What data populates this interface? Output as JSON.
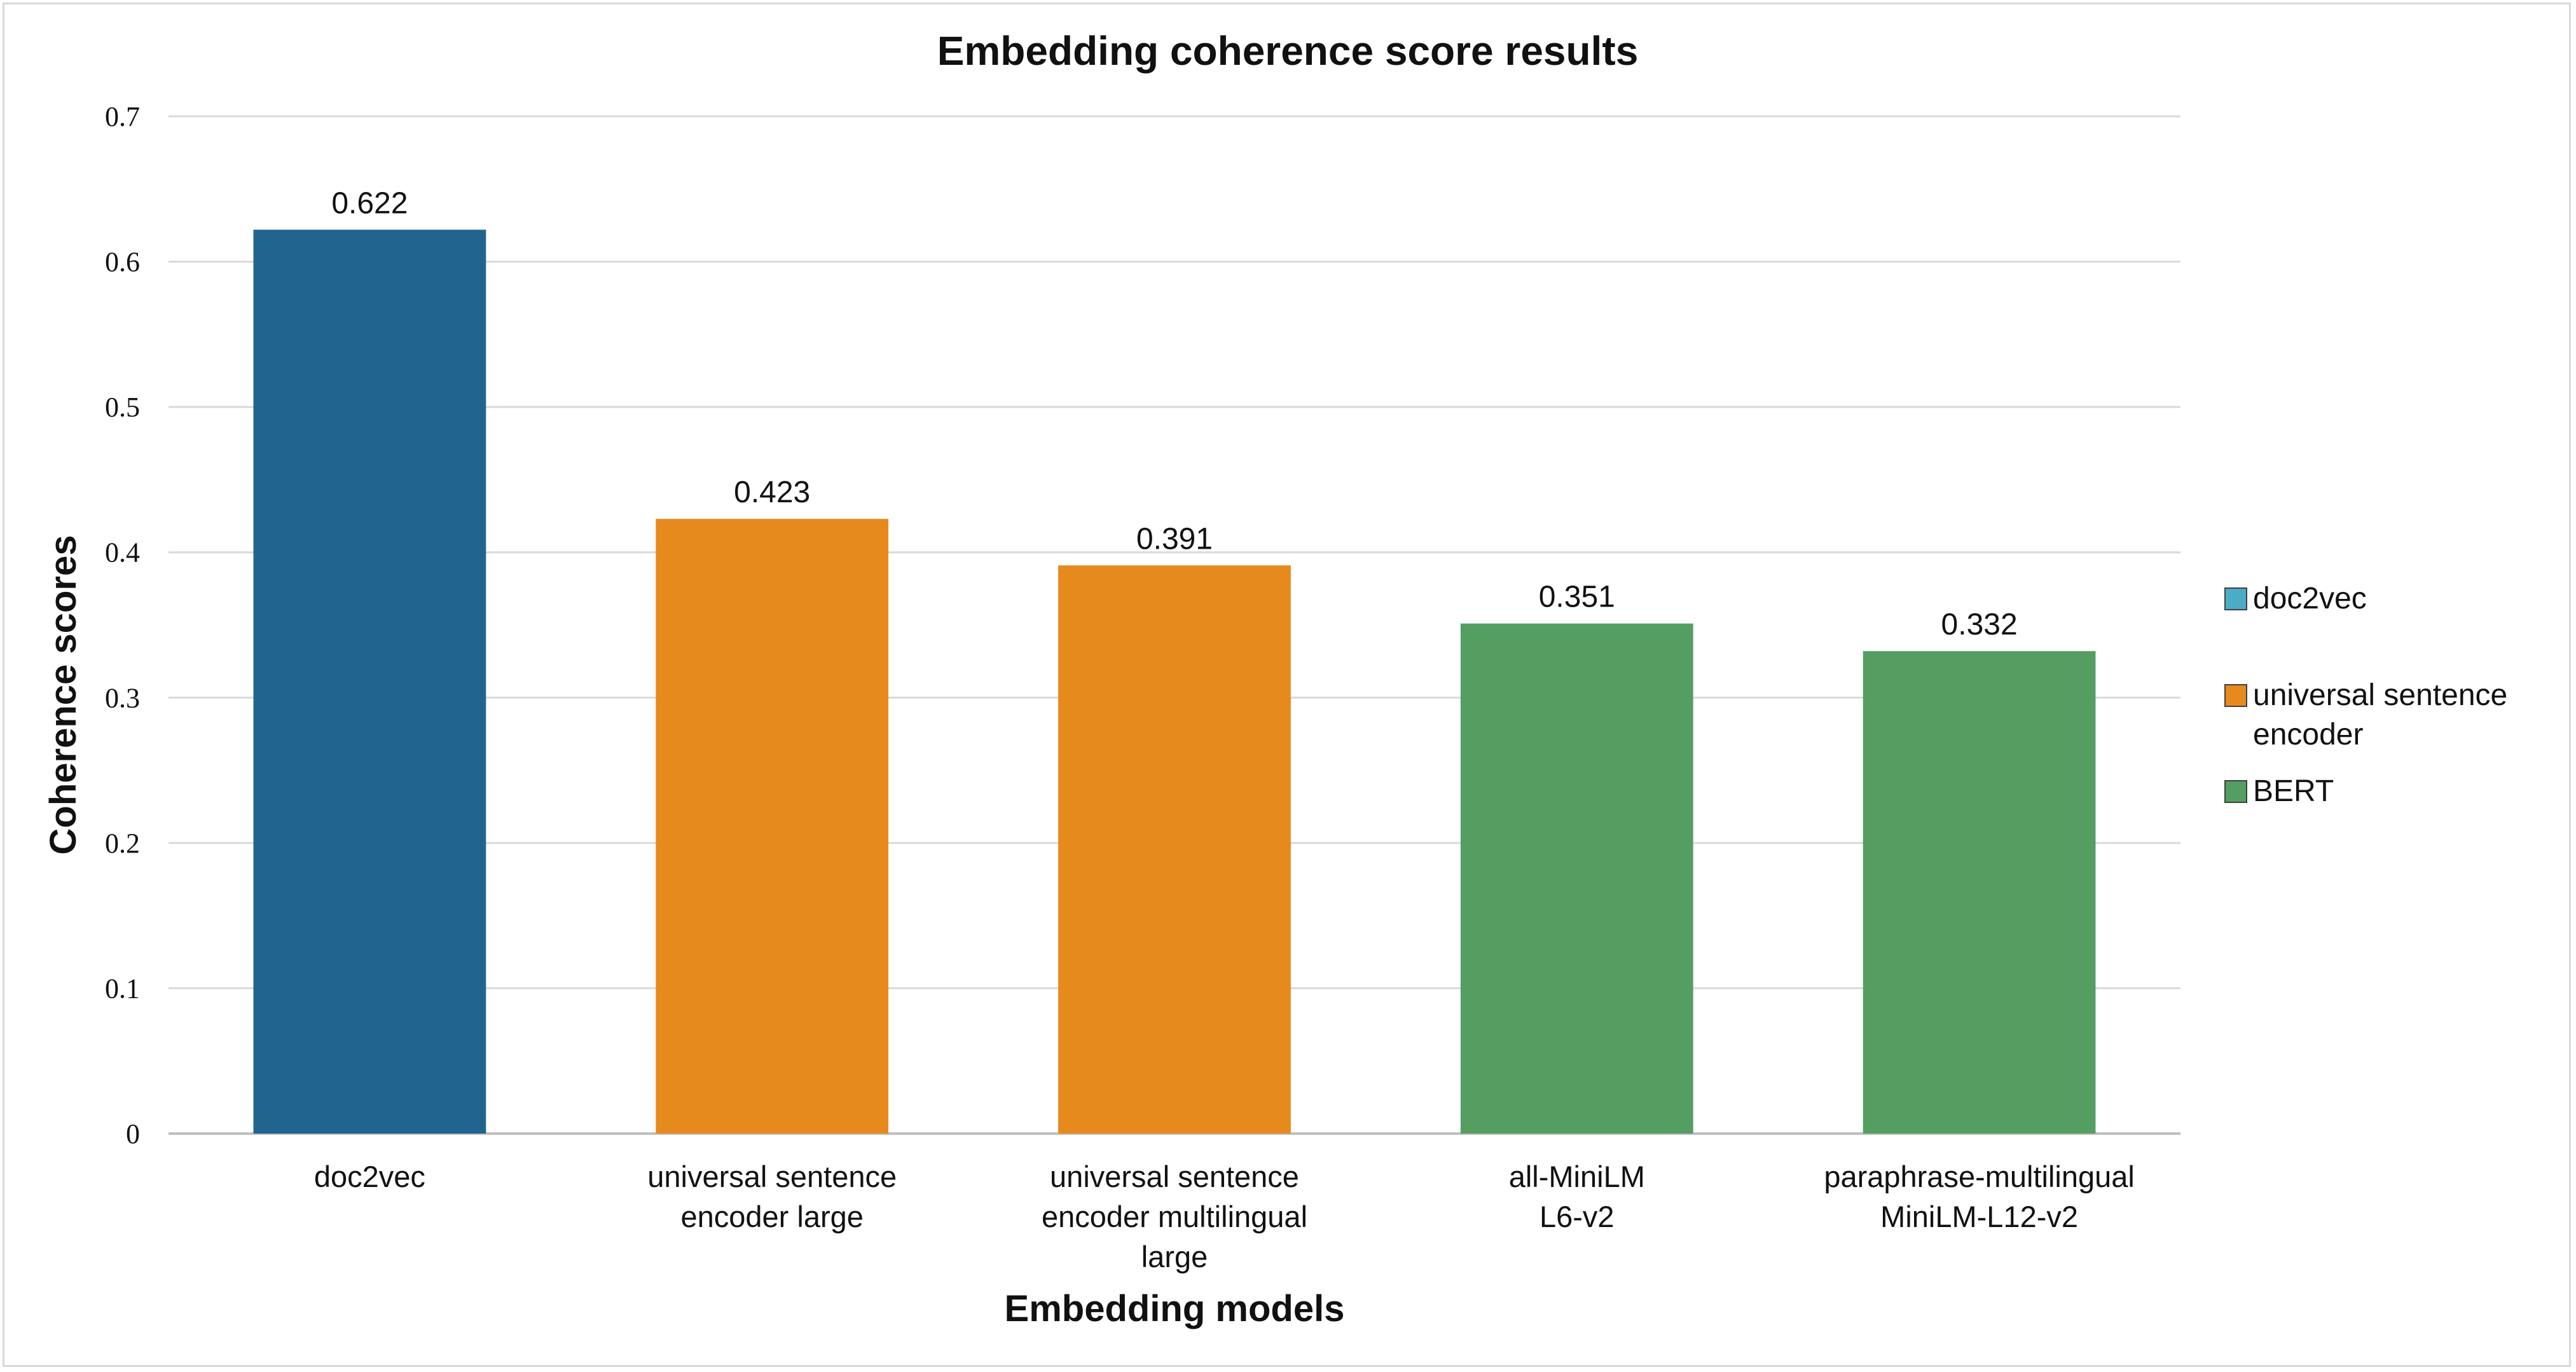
{
  "chart_data": {
    "type": "bar",
    "title": "Embedding coherence score results",
    "xlabel": "Embedding models",
    "ylabel": "Coherence scores",
    "categories": [
      [
        "doc2vec"
      ],
      [
        "universal sentence",
        "encoder large"
      ],
      [
        "universal sentence",
        "encoder multilingual",
        "large"
      ],
      [
        "all-MiniLM",
        "L6-v2"
      ],
      [
        "paraphrase-multilingual",
        "MiniLM-L12-v2"
      ]
    ],
    "values": [
      0.622,
      0.423,
      0.391,
      0.351,
      0.332
    ],
    "data_labels": [
      "0.622",
      "0.423",
      "0.391",
      "0.351",
      "0.332"
    ],
    "bar_groups": [
      "doc2vec",
      "universal sentence encoder",
      "universal sentence encoder",
      "BERT",
      "BERT"
    ],
    "ylim": [
      0,
      0.7
    ],
    "yticks": [
      0,
      0.1,
      0.2,
      0.3,
      0.4,
      0.5,
      0.6,
      0.7
    ],
    "ytick_labels": [
      "0",
      "0.1",
      "0.2",
      "0.3",
      "0.4",
      "0.5",
      "0.6",
      "0.7"
    ],
    "grid": true,
    "legend_position": "right",
    "legend": [
      {
        "lines": [
          "doc2vec"
        ],
        "color": "#4bacc6"
      },
      {
        "lines": [
          "universal sentence",
          "encoder"
        ],
        "color": "#e68a1e"
      },
      {
        "lines": [
          "BERT"
        ],
        "color": "#549e62"
      }
    ],
    "bar_colors": [
      "#226490",
      "#e68a1e",
      "#e68a1e",
      "#549e62",
      "#549e62"
    ]
  }
}
